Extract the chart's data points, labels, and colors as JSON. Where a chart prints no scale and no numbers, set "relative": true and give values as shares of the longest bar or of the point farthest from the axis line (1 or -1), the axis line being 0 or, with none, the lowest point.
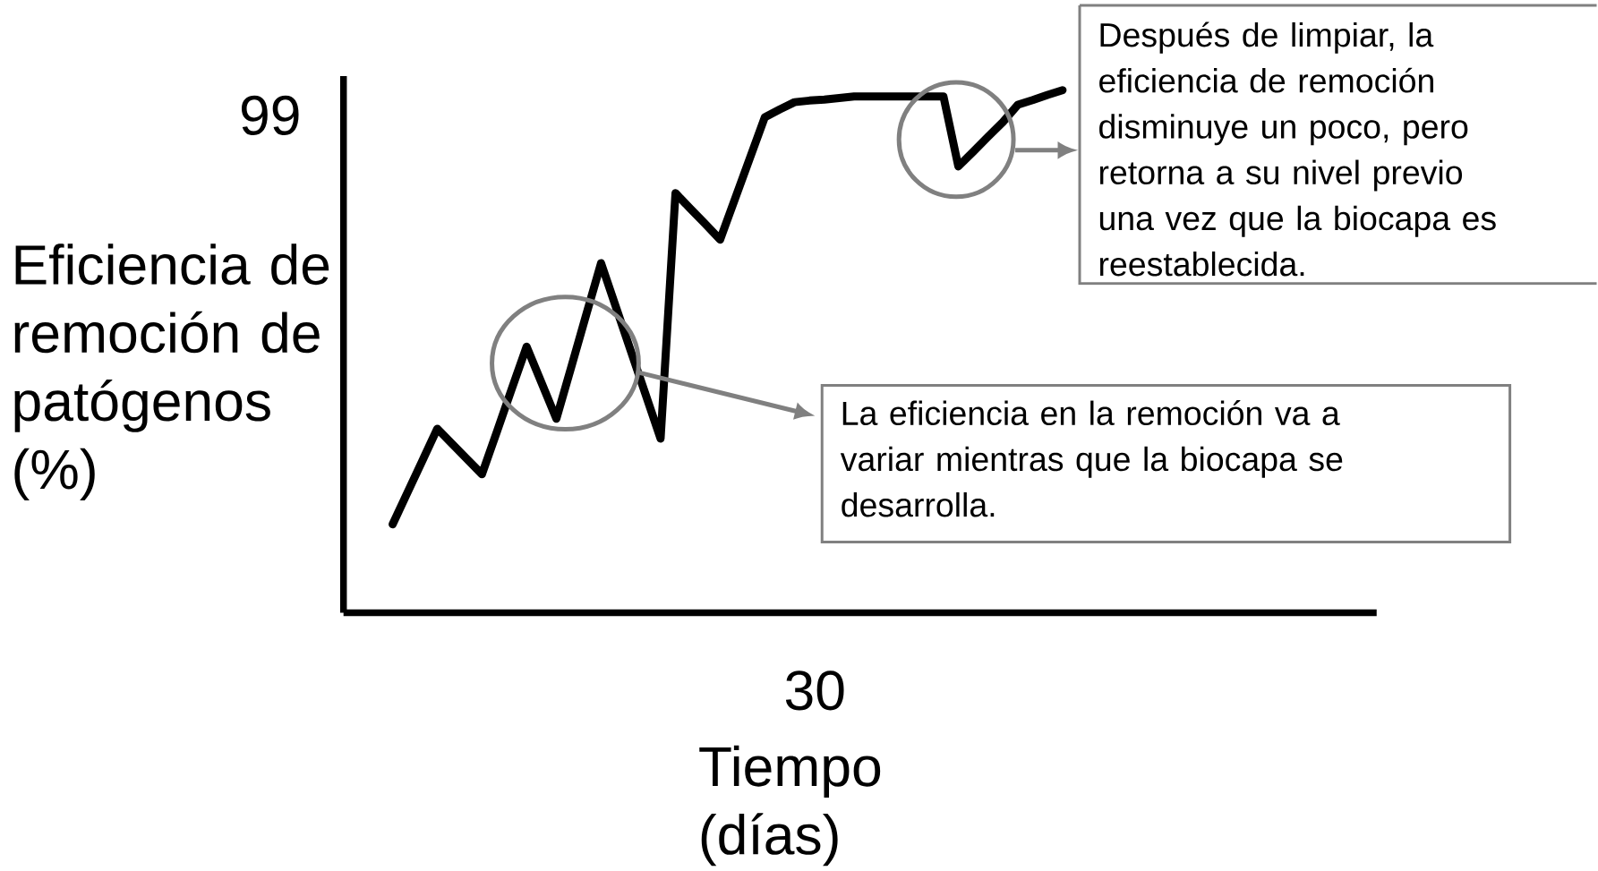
{
  "chart_data": {
    "type": "line",
    "xlabel": "Tiempo (días)",
    "ylabel": "Eficiencia de remoción de patógenos (%)",
    "relative": true,
    "color": "#000000",
    "categories": [
      null,
      null,
      null,
      null,
      null,
      null,
      null,
      null,
      null,
      null,
      null,
      null,
      null,
      null,
      null,
      null,
      null,
      null,
      null,
      null,
      null,
      null,
      null,
      null,
      null,
      null,
      null,
      null,
      null,
      null,
      null,
      null,
      null,
      null,
      null,
      null,
      null,
      null,
      null,
      null,
      null,
      null,
      null,
      null,
      null,
      null
    ],
    "values": [
      0.169,
      0.23,
      0.291,
      0.352,
      0.323,
      0.294,
      0.265,
      0.346,
      0.428,
      0.509,
      0.44,
      0.371,
      0.47,
      0.57,
      0.669,
      0.585,
      0.501,
      0.417,
      0.333,
      0.803,
      0.773,
      0.744,
      0.714,
      0.792,
      0.87,
      0.948,
      0.963,
      0.977,
      0.98,
      0.982,
      0.985,
      0.988,
      0.988,
      0.988,
      0.988,
      0.988,
      0.988,
      0.988,
      0.854,
      0.882,
      0.911,
      0.939,
      0.972,
      0.981,
      0.991,
      1
    ],
    "annotations": [
      "99",
      "30",
      "Después de limpiar, la eficiencia de remoción disminuye un poco, pero retorna a su nivel previo una vez que la biocapa es reestablecida.",
      "La eficiencia en la remoción va a variar mientras que la biocapa se desarrolla."
    ]
  }
}
